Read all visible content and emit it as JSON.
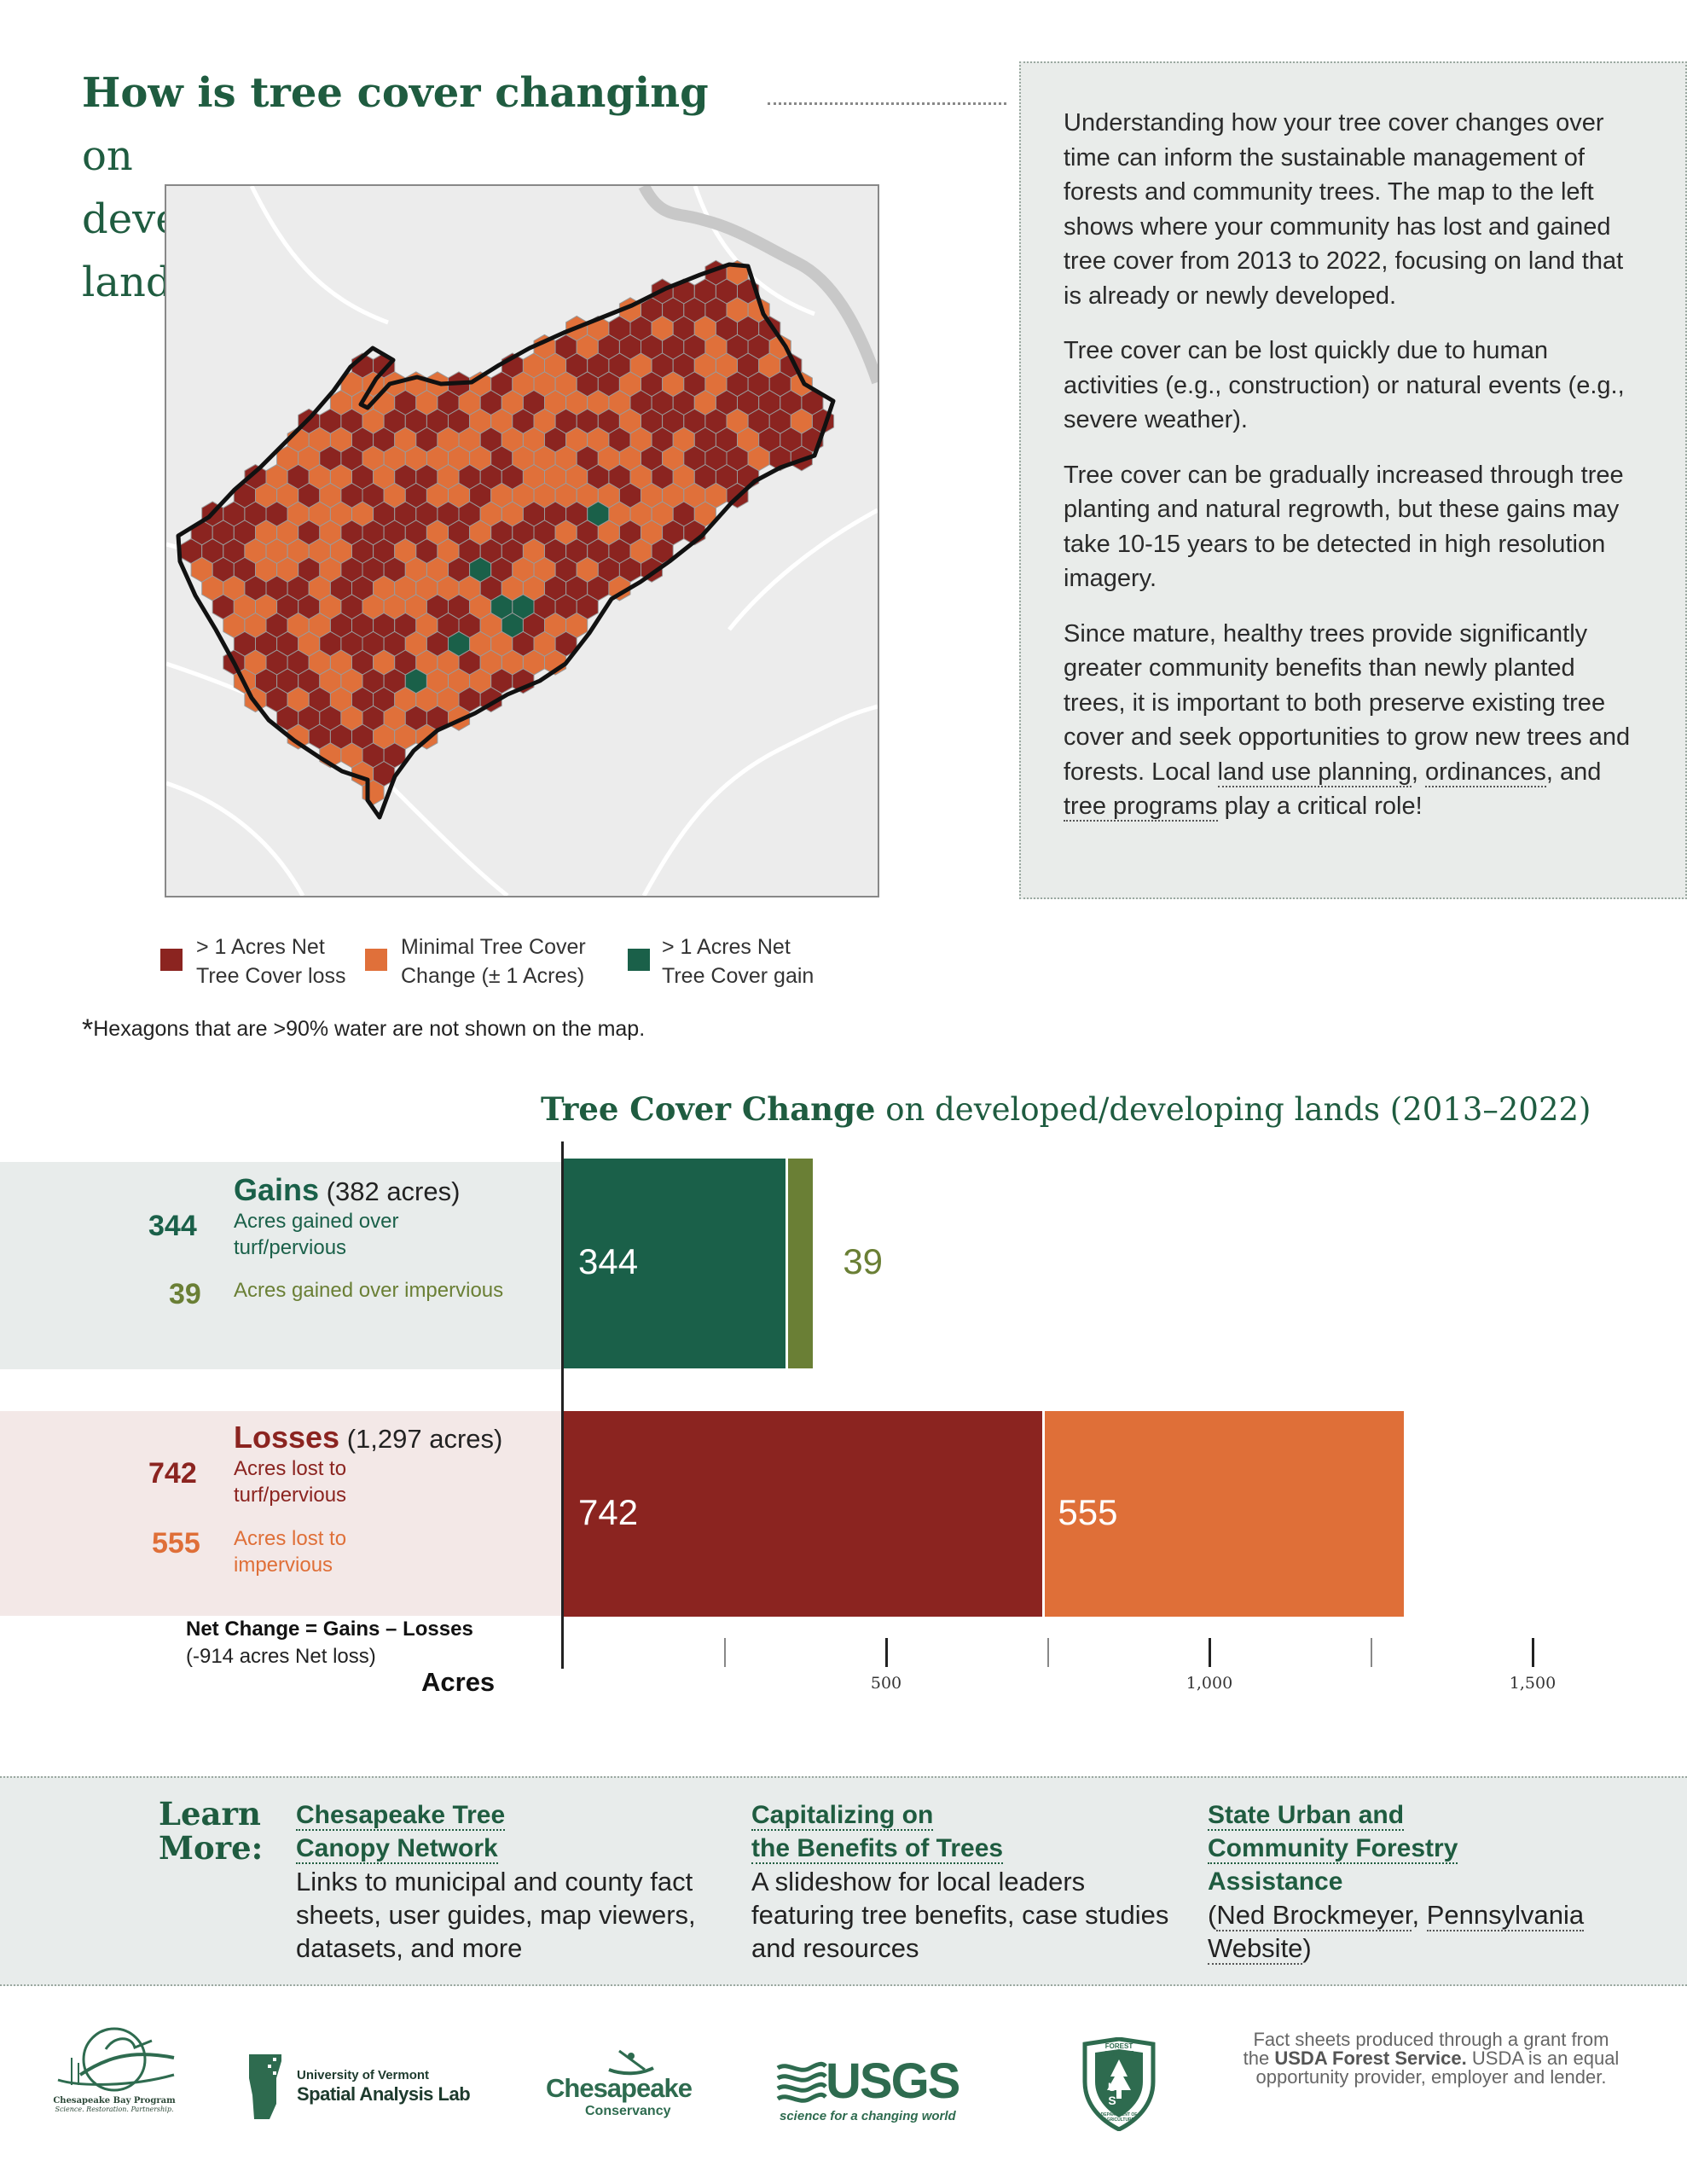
{
  "title": {
    "bold": "How is tree cover changing",
    "rest_line1": " on",
    "line2": "developed and developing lands?"
  },
  "info_panel": {
    "p1": "Understanding how your tree cover changes over time can inform the sustainable management of forests and community trees. The map to the left shows where your community has lost and gained tree cover from 2013 to 2022, focusing on land that is already or newly developed.",
    "p2": "Tree cover can be lost quickly due to human activities (e.g., construction) or natural events (e.g., severe weather).",
    "p3": "Tree cover can be gradually increased through tree planting and natural regrowth, but these gains may take 10-15 years to be detected in high resolution imagery.",
    "p4_start": "Since mature, healthy trees provide significantly greater community benefits than newly planted trees, it is important to both preserve existing tree cover and seek opportunities to grow new trees and forests. Local ",
    "link1": "land use planning",
    "sep1": ", ",
    "link2": "ordinances",
    "sep2": ", and ",
    "link3": "tree programs",
    "p4_end": " play a critical role!"
  },
  "legend": {
    "loss_line1": "> 1 Acres Net",
    "loss_line2": "Tree Cover loss",
    "minimal_line1": "Minimal Tree Cover",
    "minimal_line2": "Change (± 1 Acres)",
    "gain_line1": "> 1 Acres Net",
    "gain_line2": "Tree Cover gain",
    "water_star": "*",
    "water_note": "Hexagons that are >90% water are not shown on the map."
  },
  "colors": {
    "loss": "#8b2420",
    "minimal": "#e0703a",
    "gain": "#1a6049",
    "gain_impervious": "#6a7f35",
    "loss_impervious": "#df6f38",
    "heading_green": "#1f5c40"
  },
  "chart_title": {
    "bold": "Tree Cover Change",
    "rest": " on developed/developing lands (2013–2022)"
  },
  "gains": {
    "heading": "Gains",
    "total": " (382 acres)",
    "v1_label": "344",
    "d1": "Acres gained over turf/pervious",
    "v2_label": "39",
    "d2": "Acres gained over impervious"
  },
  "losses": {
    "heading": "Losses",
    "total": " (1,297 acres)",
    "v1_label": "742",
    "d1": "Acres lost to turf/pervious",
    "v2_label": "555",
    "d2": "Acres lost to impervious"
  },
  "net": {
    "title": "Net Change = Gains – Losses",
    "sub": "(-914 acres Net loss)"
  },
  "chart_data": {
    "type": "bar",
    "orientation": "horizontal-stacked",
    "title": "Tree Cover Change on developed/developing lands (2013–2022)",
    "xlabel": "Acres",
    "categories": [
      "Gains",
      "Losses"
    ],
    "series": [
      {
        "name": "Acres gained over turf/pervious",
        "category": "Gains",
        "value": 344,
        "color": "#1a6049"
      },
      {
        "name": "Acres gained over impervious",
        "category": "Gains",
        "value": 39,
        "color": "#6a7f35"
      },
      {
        "name": "Acres lost to turf/pervious",
        "category": "Losses",
        "value": 742,
        "color": "#8b2420"
      },
      {
        "name": "Acres lost to impervious",
        "category": "Losses",
        "value": 555,
        "color": "#df6f38"
      }
    ],
    "xlim": [
      0,
      1500
    ],
    "ticks": [
      250,
      500,
      750,
      1000,
      1250,
      1500
    ],
    "tick_labels": [
      "",
      "500",
      "",
      "1,000",
      "",
      "1,500"
    ]
  },
  "learn_more": {
    "heading_line1": "Learn",
    "heading_line2": "More:",
    "c1_title_l1": "Chesapeake Tree",
    "c1_title_l2": "Canopy Network",
    "c1_desc": "Links to municipal and county fact sheets, user guides, map viewers, datasets, and more",
    "c2_title_l1": "Capitalizing on",
    "c2_title_l2": "the Benefits of Trees",
    "c2_desc": "A slideshow for local leaders featuring tree benefits, case studies and resources",
    "c3_title_l1": "State Urban and",
    "c3_title_l2": "Community Forestry",
    "c3_title_l3": "Assistance",
    "c3_open": "(",
    "c3_link1": "Ned Brockmeyer",
    "c3_sep": ", ",
    "c3_link2a": "Pennsylvania",
    "c3_link2b": "Website",
    "c3_close": ")"
  },
  "logos": {
    "cbp_name": "Chesapeake Bay Program",
    "cbp_tag": "Science. Restoration. Partnership.",
    "uvm_l1": "University of Vermont",
    "uvm_l2": "Spatial Analysis Lab",
    "cc_l1": "Chesapeake",
    "cc_l2": "Conservancy",
    "usgs": "USGS",
    "usgs_tag": "science for a changing world",
    "fs_top": "FOREST SERVICE",
    "fs_mid": "U S",
    "fs_bottom": "DEPARTMENT OF AGRICULTURE",
    "disc_l1": "Fact sheets produced through a grant from",
    "disc_the": "the ",
    "disc_bold": "USDA Forest Service.",
    "disc_l2_rest": " USDA is an equal",
    "disc_l3": "opportunity provider, employer and lender."
  }
}
